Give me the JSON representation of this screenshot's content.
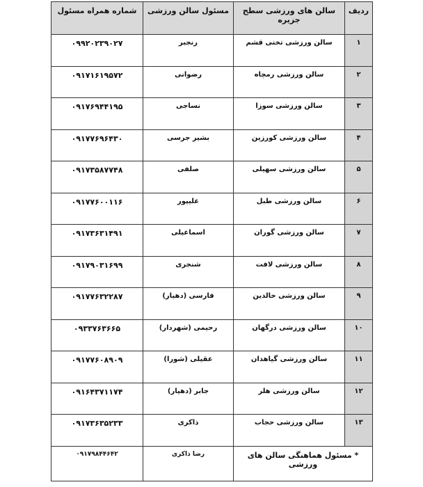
{
  "headers": {
    "row": "ردیف",
    "hall": "سالن های ورزشی سطح جزیره",
    "manager": "مسئول سالن ورزشی",
    "phone": "شماره همراه مسئول"
  },
  "rows": [
    {
      "n": "۱",
      "hall": "سالن ورزشی تختی قشم",
      "manager": "رنجبر",
      "phone": "۰۹۹۲۰۲۳۹۰۲۷"
    },
    {
      "n": "۲",
      "hall": "سالن ورزشی رمچاه",
      "manager": "رضوانی",
      "phone": "۰۹۱۷۱۶۱۹۵۷۲"
    },
    {
      "n": "۳",
      "hall": "سالن ورزشی سوزا",
      "manager": "نساجی",
      "phone": "۰۹۱۷۶۹۴۴۱۹۵"
    },
    {
      "n": "۴",
      "hall": "سالن ورزشی کورزین",
      "manager": "بشیر جرسی",
      "phone": "۰۹۱۷۷۶۹۶۴۳۰"
    },
    {
      "n": "۵",
      "hall": "سالن ورزشی سهیلی",
      "manager": "صلفی",
      "phone": "۰۹۱۷۳۵۸۷۷۴۸"
    },
    {
      "n": "۶",
      "hall": "سالن ورزشی طبل",
      "manager": "علیپور",
      "phone": "۰۹۱۷۷۶۰۰۱۱۶"
    },
    {
      "n": "۷",
      "hall": "سالن ورزشی گوران",
      "manager": "اسماعیلی",
      "phone": "۰۹۱۷۳۶۳۱۴۹۱"
    },
    {
      "n": "۸",
      "hall": "سالن ورزشی لافت",
      "manager": "شنجری",
      "phone": "۰۹۱۷۹۰۳۱۶۹۹"
    },
    {
      "n": "۹",
      "hall": "سالن ورزشی خالدین",
      "manager": "فارسی (دهیار)",
      "phone": "۰۹۱۷۷۶۳۲۲۸۷"
    },
    {
      "n": "۱۰",
      "hall": "سالن ورزشی درگهان",
      "manager": "رحیمی (شهردار)",
      "phone": "۰۹۳۳۷۶۳۶۶۵"
    },
    {
      "n": "۱۱",
      "hall": "سالن ورزشی گیاهدان",
      "manager": "عقیلی (شورا)",
      "phone": "۰۹۱۷۷۶۰۸۹۰۹"
    },
    {
      "n": "۱۲",
      "hall": "سالن ورزشی هلر",
      "manager": "جابر (دهیار)",
      "phone": "۰۹۱۶۴۳۷۱۱۷۴"
    },
    {
      "n": "۱۳",
      "hall": "سالن ورزشی حجاب",
      "manager": "ذاکری",
      "phone": "۰۹۱۷۳۶۳۵۲۳۳"
    }
  ],
  "coordinator": {
    "label": "* مسئول هماهنگی سالن های ورزشی",
    "manager": "رضا ذاکری",
    "phone": "۰۹۱۷۹۸۴۴۶۴۲"
  }
}
